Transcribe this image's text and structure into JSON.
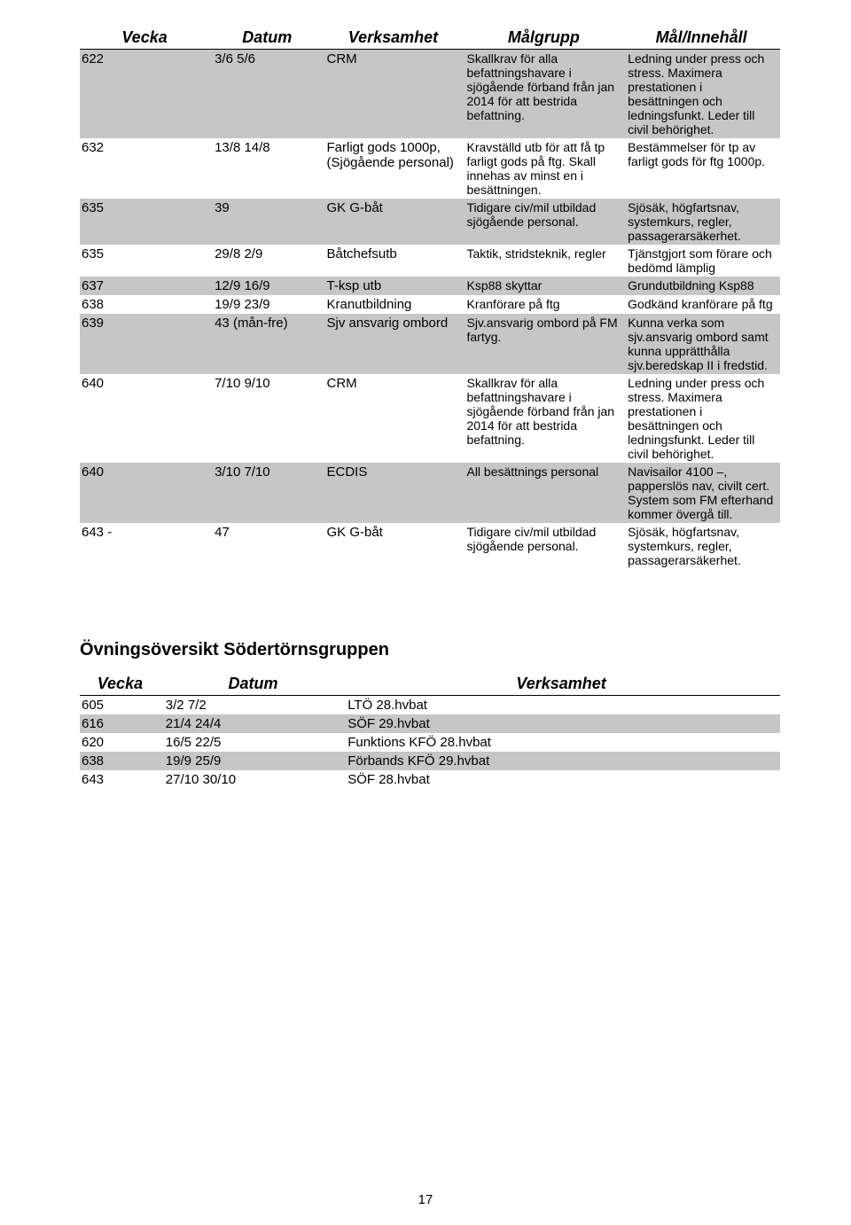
{
  "main_table": {
    "columns": [
      "Vecka",
      "Datum",
      "Verksamhet",
      "Målgrupp",
      "Mål/Innehåll"
    ],
    "rows": [
      {
        "vecka": "622",
        "datum": "3/6 5/6",
        "verksamhet": "CRM",
        "malgrupp": "Skallkrav för alla befattningshavare i sjögående förband från jan 2014 för att bestrida befattning.",
        "mal": "Ledning under press och stress. Maximera prestationen i besättningen och ledningsfunkt. Leder till civil behörighet.",
        "grey": true
      },
      {
        "vecka": "632",
        "datum": "13/8 14/8",
        "verksamhet": "Farligt gods 1000p, (Sjögående personal)",
        "malgrupp": "Kravställd utb för att få tp farligt gods på ftg. Skall innehas av minst en i besättningen.",
        "mal": "Bestämmelser för tp av farligt gods för ftg 1000p.",
        "grey": false
      },
      {
        "vecka": "635",
        "datum": "39",
        "verksamhet": "GK G-båt",
        "malgrupp": "Tidigare civ/mil utbildad sjögående personal.",
        "mal": "Sjösäk, högfartsnav, systemkurs, regler, passagerarsäkerhet.",
        "grey": true
      },
      {
        "vecka": "635",
        "datum": "29/8 2/9",
        "verksamhet": "Båtchefsutb",
        "malgrupp": "Taktik, stridsteknik, regler",
        "mal": "Tjänstgjort som förare och bedömd lämplig",
        "grey": false
      },
      {
        "vecka": "637",
        "datum": "12/9 16/9",
        "verksamhet": "T-ksp utb",
        "malgrupp": "Ksp88 skyttar",
        "mal": "Grundutbildning Ksp88",
        "grey": true
      },
      {
        "vecka": "638",
        "datum": "19/9 23/9",
        "verksamhet": "Kranutbildning",
        "malgrupp": "Kranförare på ftg",
        "mal": "Godkänd kranförare på ftg",
        "grey": false
      },
      {
        "vecka": "639",
        "datum": "43 (mån-fre)",
        "verksamhet": "Sjv ansvarig ombord",
        "malgrupp": "Sjv.ansvarig ombord på FM fartyg.",
        "mal": "Kunna verka som sjv.ansvarig ombord samt kunna upprätthålla sjv.beredskap II i fredstid.",
        "grey": true
      },
      {
        "vecka": "640",
        "datum": "7/10 9/10",
        "verksamhet": "CRM",
        "malgrupp": "Skallkrav för alla befattningshavare i sjögående förband från jan 2014 för att bestrida befattning.",
        "mal": "Ledning under press och stress. Maximera prestationen i besättningen och ledningsfunkt. Leder till civil behörighet.",
        "grey": false
      },
      {
        "vecka": "640",
        "datum": "3/10 7/10",
        "verksamhet": "ECDIS",
        "malgrupp": "All besättnings personal",
        "mal": "Navisailor 4100 –, papperslös nav, civilt cert. System som FM efterhand kommer övergå till.",
        "grey": true
      },
      {
        "vecka": "643 -",
        "datum": "47",
        "verksamhet": "GK G-båt",
        "malgrupp": "Tidigare civ/mil utbildad sjögående personal.",
        "mal": "Sjösäk, högfartsnav, systemkurs, regler, passagerarsäkerhet.",
        "grey": false
      }
    ]
  },
  "section_title": "Övningsöversikt Södertörnsgruppen",
  "exercise_table": {
    "columns": [
      "Vecka",
      "Datum",
      "Verksamhet"
    ],
    "rows": [
      {
        "vecka": "605",
        "datum": "3/2 7/2",
        "verksamhet": "LTÖ 28.hvbat",
        "grey": false
      },
      {
        "vecka": "616",
        "datum": "21/4 24/4",
        "verksamhet": "SÖF 29.hvbat",
        "grey": true
      },
      {
        "vecka": "620",
        "datum": "16/5 22/5",
        "verksamhet": "Funktions KFÖ 28.hvbat",
        "grey": false
      },
      {
        "vecka": "638",
        "datum": "19/9 25/9",
        "verksamhet": "Förbands KFÖ 29.hvbat",
        "grey": true
      },
      {
        "vecka": "643",
        "datum": "27/10 30/10",
        "verksamhet": "SÖF 28.hvbat",
        "grey": false
      }
    ]
  },
  "page_number": "17"
}
